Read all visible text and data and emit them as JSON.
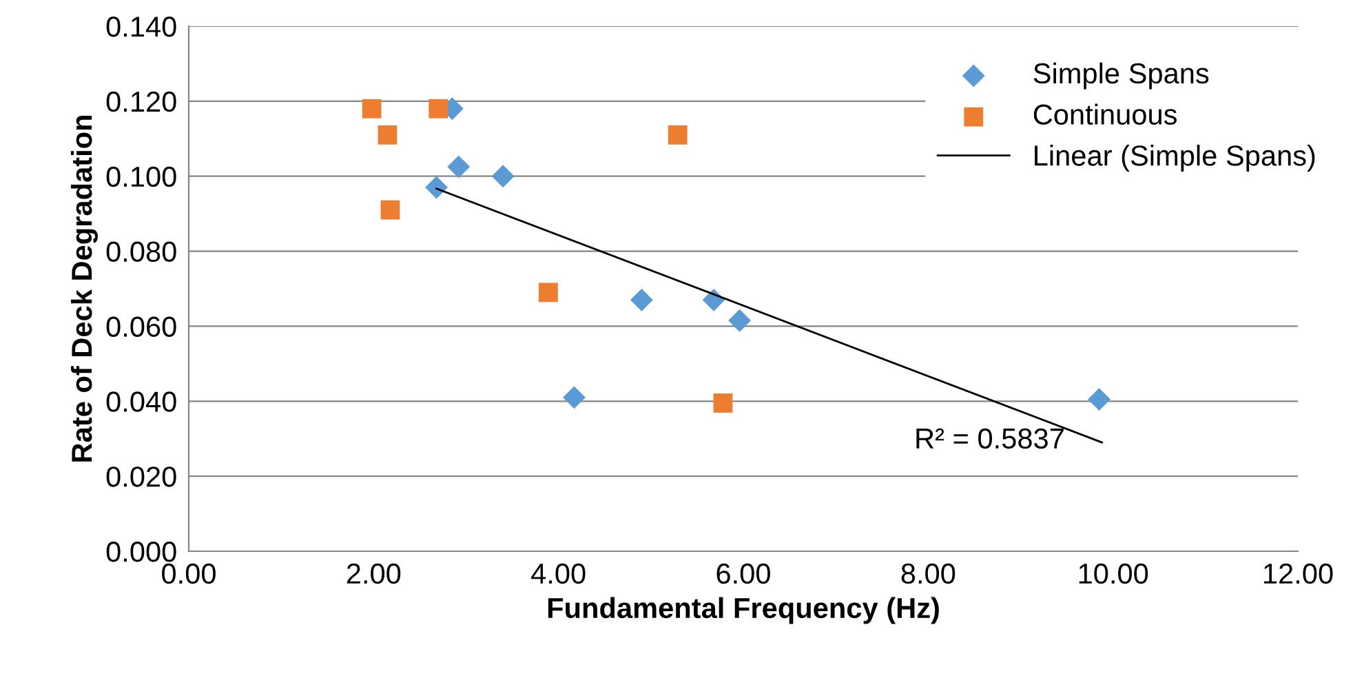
{
  "chart_data": {
    "type": "scatter",
    "xlabel": "Fundamental Frequency (Hz)",
    "ylabel": "Rate of Deck Degradation",
    "series": [
      {
        "name": "Simple Spans",
        "color": "#5b9bd5",
        "marker": "diamond",
        "x": [
          2.68,
          2.85,
          2.92,
          3.4,
          4.17,
          4.9,
          5.68,
          5.96,
          9.85
        ],
        "values": [
          0.097,
          0.118,
          0.1025,
          0.1,
          0.041,
          0.067,
          0.067,
          0.0615,
          0.0405
        ]
      },
      {
        "name": "Continuous",
        "color": "#ed7d31",
        "marker": "square",
        "x": [
          1.98,
          2.15,
          2.18,
          2.7,
          5.29,
          3.89,
          5.78
        ],
        "values": [
          0.118,
          0.111,
          0.091,
          0.118,
          0.111,
          0.069,
          0.0395
        ]
      },
      {
        "name": "Linear (Simple Spans)",
        "type": "line",
        "color": "#000000",
        "marker": "none",
        "x": [
          2.68,
          9.88
        ],
        "values": [
          0.0967,
          0.029
        ]
      }
    ],
    "annotations": [
      "R² = 0.5837"
    ],
    "xlim": [
      0,
      12
    ],
    "xticks": [
      {
        "value": 0,
        "label": "0.00"
      },
      {
        "value": 2,
        "label": "2.00"
      },
      {
        "value": 4,
        "label": "4.00"
      },
      {
        "value": 6,
        "label": "6.00"
      },
      {
        "value": 8,
        "label": "8.00"
      },
      {
        "value": 10,
        "label": "10.00"
      },
      {
        "value": 12,
        "label": "12.00"
      }
    ],
    "ylim": [
      0,
      0.14
    ],
    "yticks": [
      {
        "value": 0,
        "label": "0.000"
      },
      {
        "value": 0.02,
        "label": "0.020"
      },
      {
        "value": 0.04,
        "label": "0.040"
      },
      {
        "value": 0.06,
        "label": "0.060"
      },
      {
        "value": 0.08,
        "label": "0.080"
      },
      {
        "value": 0.1,
        "label": "0.100"
      },
      {
        "value": 0.12,
        "label": "0.120"
      },
      {
        "value": 0.14,
        "label": "0.140"
      }
    ],
    "grid": "y",
    "legend": "top right"
  }
}
